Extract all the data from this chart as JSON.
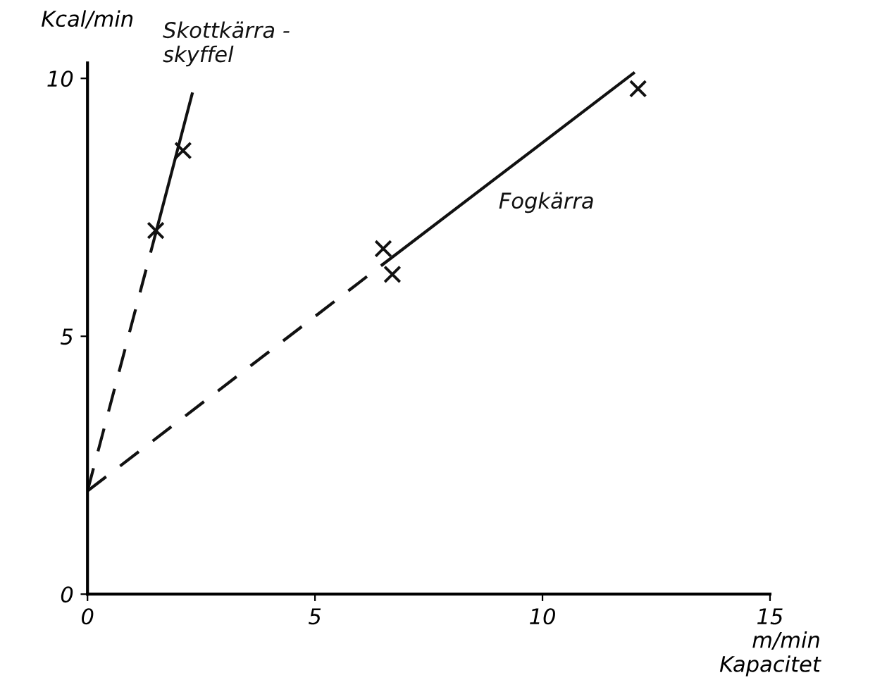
{
  "chart_data": {
    "type": "scatter",
    "xlabel": "m/min\nKapacitet",
    "ylabel": "Kcal/min",
    "xlim": [
      0,
      15
    ],
    "ylim": [
      0,
      10.3
    ],
    "xticks": [
      0,
      5,
      10,
      15
    ],
    "yticks": [
      0,
      5,
      10
    ],
    "grid": false,
    "legend": false,
    "series": [
      {
        "color": "#111111",
        "marker": "cross",
        "x": [
          1.5,
          2.1
        ],
        "values": [
          7.05,
          8.6
        ]
      },
      {
        "color": "#111111",
        "marker": "cross",
        "x": [
          6.5,
          6.7,
          12.1
        ],
        "values": [
          6.7,
          6.2,
          9.8
        ]
      },
      {
        "type": "line",
        "color": "#111111",
        "line_style": "dashed",
        "x": [
          0,
          1.5
        ],
        "values": [
          2.0,
          7.0
        ]
      },
      {
        "type": "line",
        "name": "Skottkärra -\nskyffel",
        "color": "#111111",
        "line_style": "solid",
        "x": [
          1.5,
          2.3
        ],
        "values": [
          7.0,
          9.7
        ]
      },
      {
        "type": "line",
        "color": "#111111",
        "line_style": "dashed",
        "x": [
          0,
          6.5
        ],
        "values": [
          2.0,
          6.4
        ]
      },
      {
        "type": "line",
        "name": "Fogkärra",
        "color": "#111111",
        "line_style": "solid",
        "x": [
          6.5,
          12.0
        ],
        "values": [
          6.4,
          10.1
        ]
      }
    ]
  }
}
